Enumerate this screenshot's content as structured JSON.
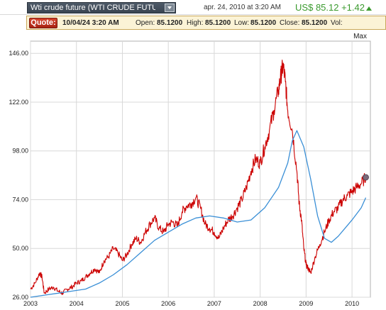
{
  "header": {
    "symbol": "Wti crude future (WTI CRUDE FUTURE",
    "date": "apr. 24, 2010 at 3:20 AM",
    "price": "US$ 85.12 +1.42"
  },
  "quote": {
    "button": "Quote:",
    "datetime": "10/04/24 3:20 AM",
    "open_label": "Open:",
    "open": "85.1200",
    "high_label": "High:",
    "high": "85.1200",
    "low_label": "Low:",
    "low": "85.1200",
    "close_label": "Close:",
    "close": "85.1200",
    "vol_label": "Vol:"
  },
  "range_label": "Max",
  "colors": {
    "price_line": "#cc0000",
    "average_line": "#3a8fd6",
    "grid": "#d8d8d8",
    "price_up": "#3a9a2e",
    "marker": "#7a6a7a"
  },
  "chart_data": {
    "type": "line",
    "ylim": [
      26,
      152
    ],
    "xlim": [
      2003.0,
      2010.4
    ],
    "y_ticks": [
      "146.00",
      "122.00",
      "98.00",
      "74.00",
      "50.00",
      "26.00"
    ],
    "x_ticks": [
      "2003",
      "2004",
      "2005",
      "2006",
      "2007",
      "2008",
      "2009",
      "2010"
    ],
    "grid": true,
    "series": [
      {
        "x": [
          2003.0,
          2003.1,
          2003.2,
          2003.25,
          2003.3,
          2003.4,
          2003.5,
          2003.6,
          2003.7,
          2003.8,
          2003.9,
          2004.0,
          2004.1,
          2004.2,
          2004.3,
          2004.4,
          2004.5,
          2004.6,
          2004.7,
          2004.8,
          2004.9,
          2005.0,
          2005.1,
          2005.2,
          2005.3,
          2005.4,
          2005.5,
          2005.6,
          2005.7,
          2005.8,
          2005.9,
          2006.0,
          2006.1,
          2006.2,
          2006.3,
          2006.4,
          2006.5,
          2006.6,
          2006.7,
          2006.8,
          2006.9,
          2007.0,
          2007.1,
          2007.2,
          2007.3,
          2007.4,
          2007.5,
          2007.6,
          2007.7,
          2007.8,
          2007.9,
          2008.0,
          2008.1,
          2008.2,
          2008.3,
          2008.4,
          2008.45,
          2008.5,
          2008.55,
          2008.6,
          2008.7,
          2008.8,
          2008.85,
          2008.9,
          2008.95,
          2009.0,
          2009.05,
          2009.1,
          2009.2,
          2009.3,
          2009.4,
          2009.5,
          2009.6,
          2009.7,
          2009.8,
          2009.9,
          2010.0,
          2010.1,
          2010.2,
          2010.3
        ],
        "values": [
          30,
          33,
          38,
          36,
          28,
          30,
          31,
          29,
          28,
          30,
          31,
          33,
          34,
          36,
          38,
          40,
          38,
          44,
          46,
          50,
          48,
          44,
          47,
          52,
          55,
          53,
          58,
          62,
          65,
          60,
          58,
          62,
          63,
          61,
          68,
          71,
          72,
          75,
          70,
          62,
          60,
          58,
          55,
          60,
          64,
          66,
          70,
          74,
          80,
          88,
          94,
          92,
          100,
          108,
          118,
          128,
          135,
          140,
          132,
          118,
          108,
          88,
          72,
          64,
          50,
          42,
          40,
          38,
          46,
          52,
          58,
          64,
          68,
          70,
          74,
          76,
          78,
          80,
          82,
          85
        ],
        "color": "#cc0000"
      },
      {
        "x": [
          2003.0,
          2003.3,
          2003.6,
          2003.9,
          2004.2,
          2004.5,
          2004.8,
          2005.1,
          2005.4,
          2005.7,
          2006.0,
          2006.3,
          2006.6,
          2006.9,
          2007.2,
          2007.5,
          2007.8,
          2008.1,
          2008.4,
          2008.6,
          2008.7,
          2008.8,
          2008.95,
          2009.1,
          2009.25,
          2009.4,
          2009.55,
          2009.7,
          2009.85,
          2010.0,
          2010.2,
          2010.3
        ],
        "values": [
          26,
          27,
          28,
          29,
          30,
          33,
          37,
          42,
          48,
          54,
          58,
          62,
          65,
          66,
          65,
          63,
          64,
          70,
          80,
          92,
          103,
          108,
          100,
          84,
          66,
          55,
          53,
          56,
          60,
          64,
          70,
          75
        ],
        "color": "#3a8fd6"
      }
    ]
  }
}
